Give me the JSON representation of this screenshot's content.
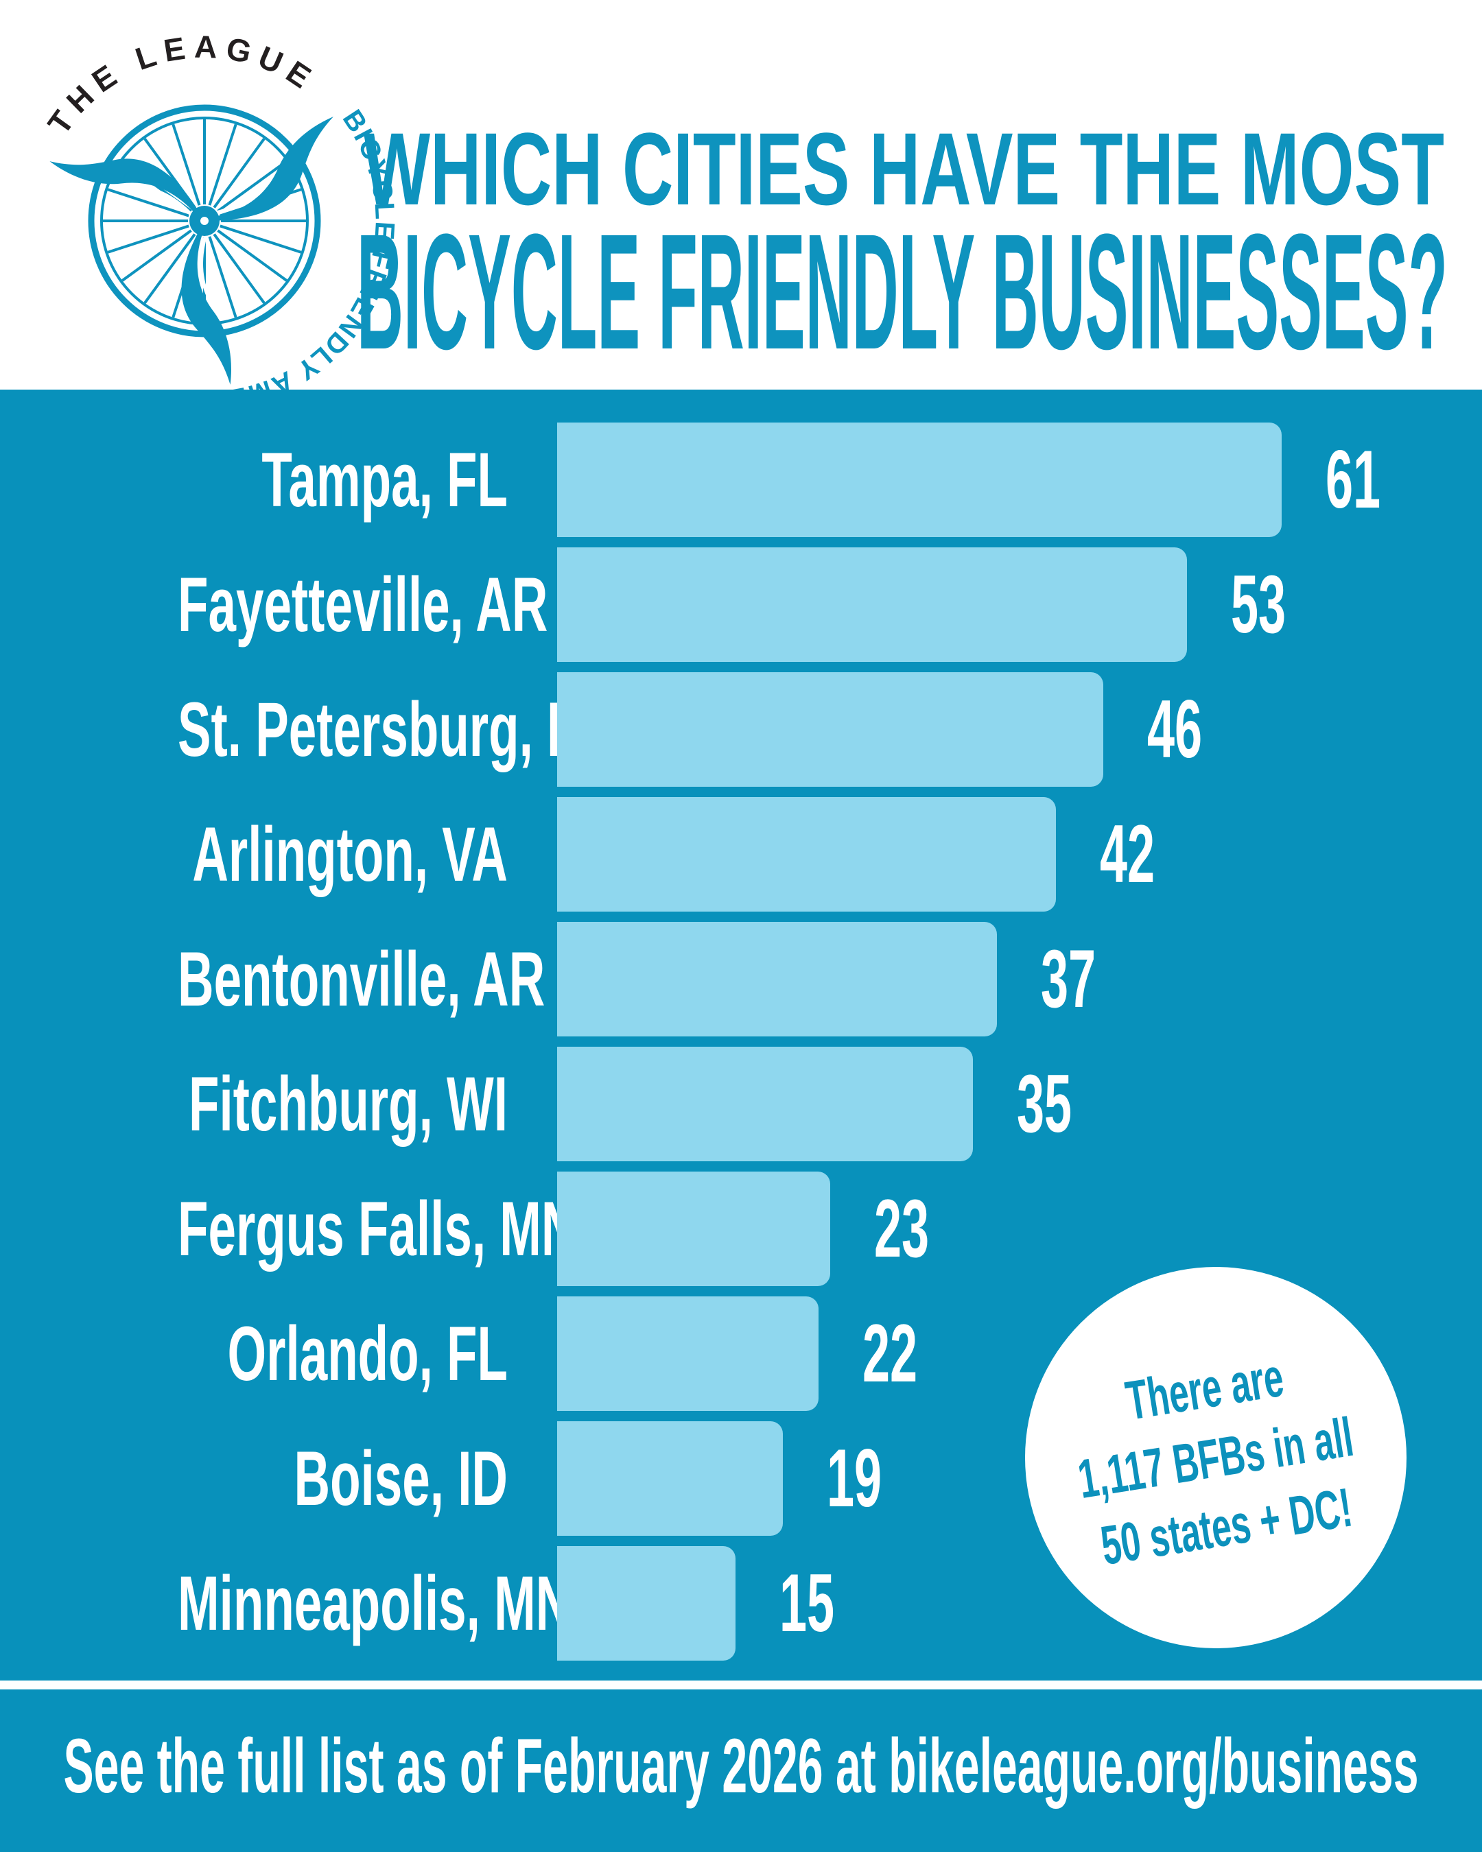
{
  "header": {
    "logo": {
      "arc_top": "THE LEAGUE »",
      "arc_right": "BICYCLE FRIENDLY AMERICA"
    },
    "title_line1": "WHICH CITIES HAVE THE MOST",
    "title_line2": "BICYCLE FRIENDLY BUSINESSES?"
  },
  "chart_data": {
    "type": "bar",
    "orientation": "horizontal",
    "title": "Which cities have the most Bicycle Friendly Businesses?",
    "categories": [
      "Tampa, FL",
      "Fayetteville, AR",
      "St. Petersburg, FL",
      "Arlington, VA",
      "Bentonville, AR",
      "Fitchburg, WI",
      "Fergus Falls, MN",
      "Orlando, FL",
      "Boise, ID",
      "Minneapolis, MN"
    ],
    "values": [
      61,
      53,
      46,
      42,
      37,
      35,
      23,
      22,
      19,
      15
    ],
    "value_labels_shown": true,
    "xlim": [
      0,
      61
    ],
    "grid": false,
    "legend": "none",
    "bar_color": "#8FD7EE",
    "label_color": "#FFFFFF"
  },
  "badge": {
    "line1": "There are",
    "line2": "1,117 BFBs in all",
    "line3": "50 states + DC!"
  },
  "footer": {
    "text": "See the full list as of February 2026 at bikeleague.org/business"
  },
  "colors": {
    "background_teal": "#0891BB",
    "bar_light_blue": "#8FD7EE",
    "title_teal": "#0E93BE",
    "badge_text_teal": "#0C91BC",
    "logo_dark": "#231F20",
    "text_white": "#FFFFFF"
  }
}
